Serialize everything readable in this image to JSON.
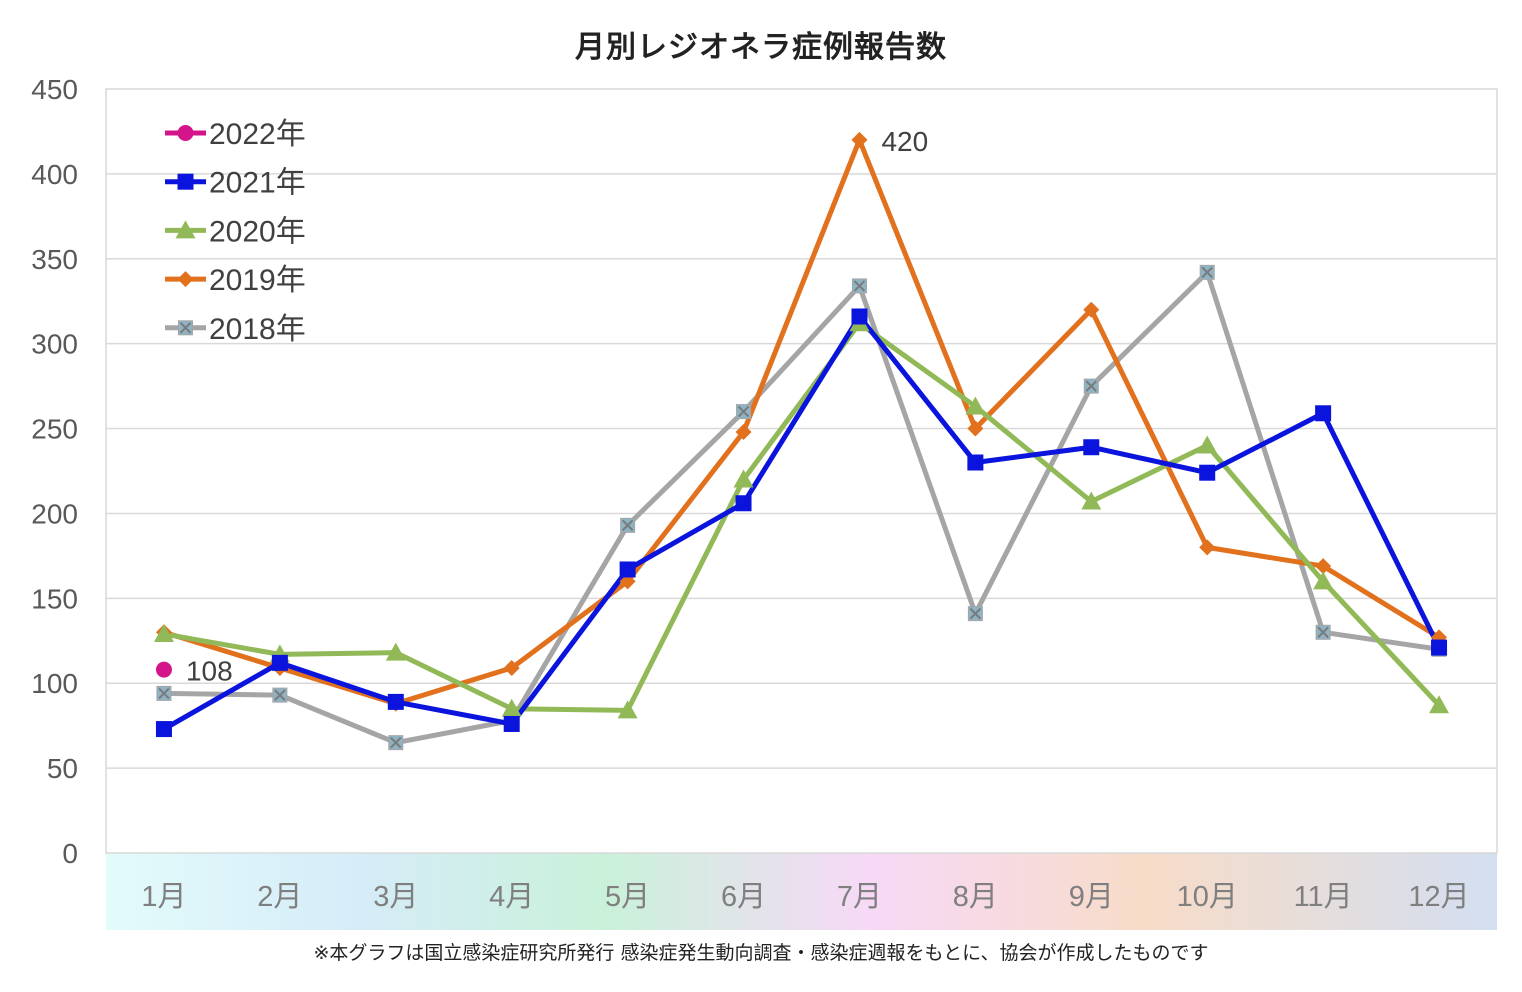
{
  "chart_data": {
    "type": "line",
    "title": "月別レジオネラ症例報告数",
    "xlabel": "",
    "ylabel": "",
    "categories": [
      "1月",
      "2月",
      "3月",
      "4月",
      "5月",
      "6月",
      "7月",
      "8月",
      "9月",
      "10月",
      "11月",
      "12月"
    ],
    "ylim": [
      0,
      450
    ],
    "yticks": [
      0,
      50,
      100,
      150,
      200,
      250,
      300,
      350,
      400,
      450
    ],
    "grid": true,
    "legend_position": "top-left",
    "series": [
      {
        "name": "2022年",
        "color": "#d4148a",
        "marker": "circle",
        "values": [
          108,
          null,
          null,
          null,
          null,
          null,
          null,
          null,
          null,
          null,
          null,
          null
        ]
      },
      {
        "name": "2021年",
        "color": "#0a14dc",
        "marker": "square",
        "values": [
          73,
          112,
          89,
          76,
          167,
          206,
          316,
          230,
          239,
          224,
          259,
          121
        ]
      },
      {
        "name": "2020年",
        "color": "#92b957",
        "marker": "triangle",
        "values": [
          129,
          117,
          118,
          85,
          84,
          220,
          312,
          263,
          207,
          240,
          160,
          87
        ]
      },
      {
        "name": "2019年",
        "color": "#e2711d",
        "marker": "diamond",
        "values": [
          130,
          109,
          88,
          109,
          160,
          248,
          420,
          250,
          320,
          180,
          169,
          127
        ]
      },
      {
        "name": "2018年",
        "color": "#a5a5a5",
        "marker": "x-square",
        "values": [
          94,
          93,
          65,
          78,
          193,
          260,
          334,
          141,
          275,
          342,
          130,
          120
        ]
      }
    ],
    "annotations": [
      {
        "series": "2022年",
        "category": "1月",
        "text": "108"
      },
      {
        "series": "2019年",
        "category": "7月",
        "text": "420"
      }
    ]
  },
  "footnote": "※本グラフは国立感染症研究所発行 感染症発生動向調査・感染症週報をもとに、協会が作成したものです"
}
